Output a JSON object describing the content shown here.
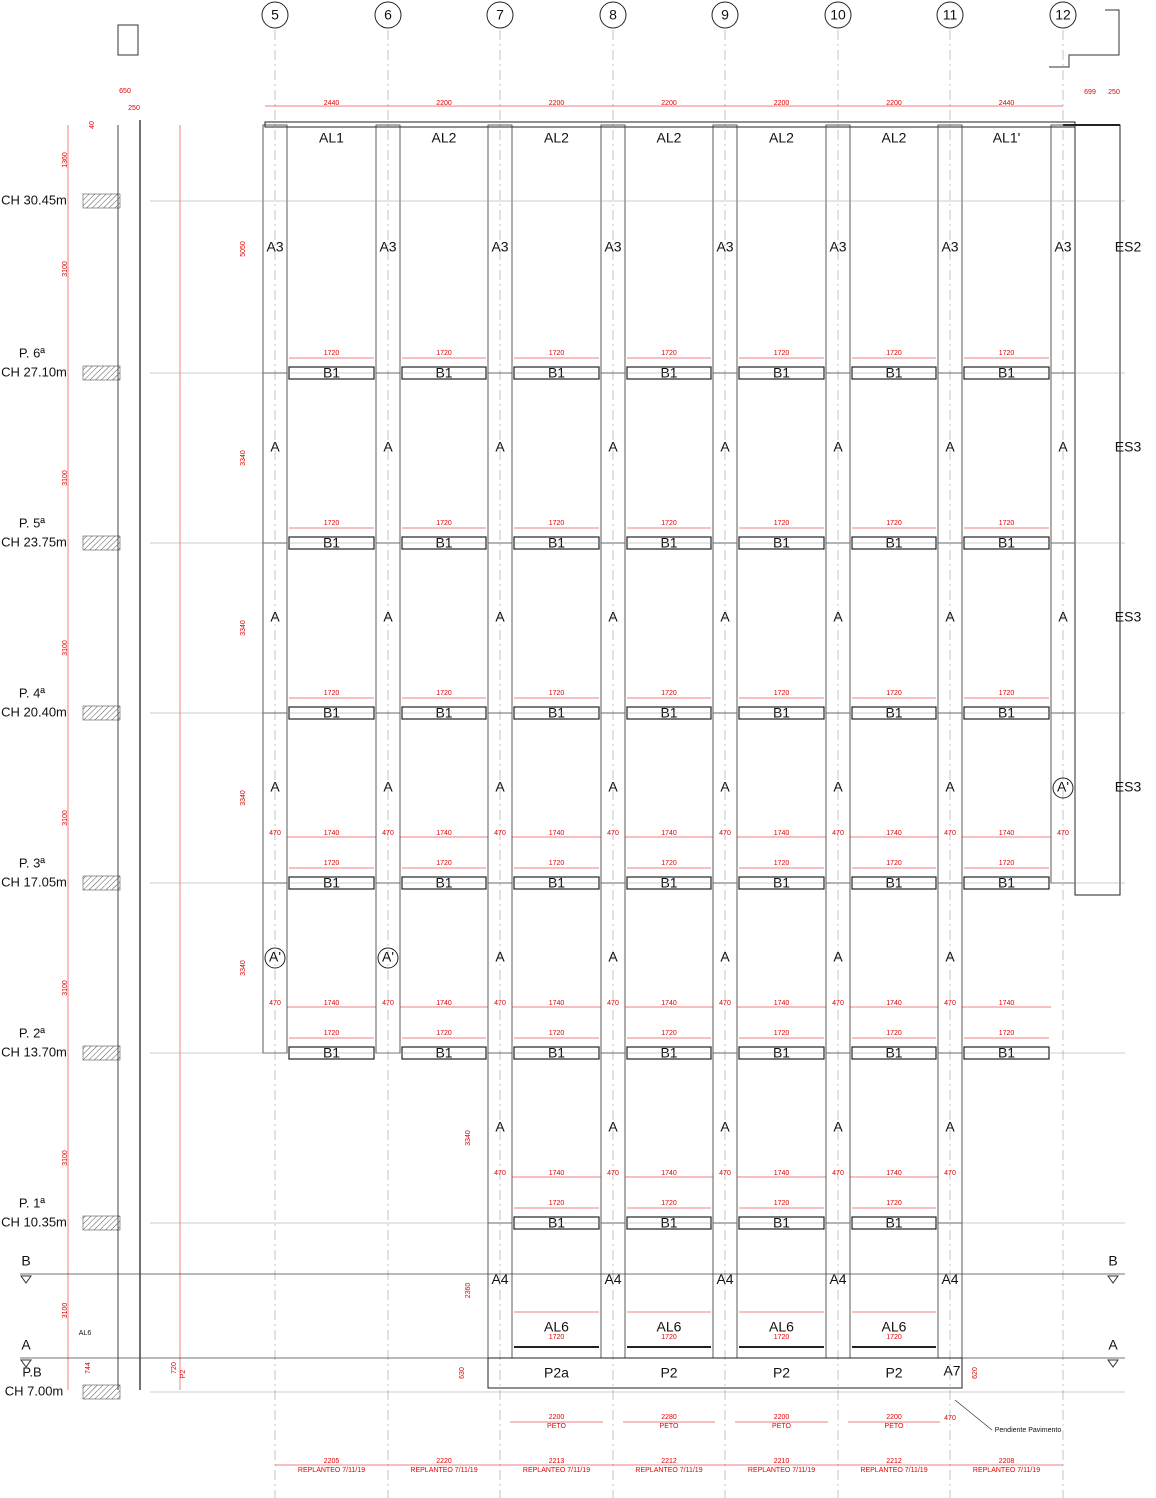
{
  "axes": [
    "5",
    "6",
    "7",
    "8",
    "9",
    "10",
    "11",
    "12"
  ],
  "top_dims": [
    "2440",
    "2200",
    "2200",
    "2200",
    "2200",
    "2200",
    "2440"
  ],
  "top_right_dims": [
    "699",
    "250"
  ],
  "roof_panels": [
    "AL1",
    "AL2",
    "AL2",
    "AL2",
    "AL2",
    "AL2",
    "AL1'"
  ],
  "left_top_dims": [
    "650",
    "250",
    "40",
    "1360"
  ],
  "levels": [
    {
      "elevation": "CH 30.45m"
    },
    {
      "name": "P. 6ª",
      "elevation": "CH 27.10m"
    },
    {
      "name": "P. 5ª",
      "elevation": "CH 23.75m"
    },
    {
      "name": "P. 4ª",
      "elevation": "CH 20.40m"
    },
    {
      "name": "P. 3ª",
      "elevation": "CH 17.05m"
    },
    {
      "name": "P. 2ª",
      "elevation": "CH 13.70m"
    },
    {
      "name": "P. 1ª",
      "elevation": "CH 10.35m"
    },
    {
      "name": "P.B",
      "elevation": "CH 7.00m"
    }
  ],
  "bands": [
    {
      "side": "ES2",
      "height": "5050",
      "story": "3100",
      "columns": [
        "A3",
        "A3",
        "A3",
        "A3",
        "A3",
        "A3",
        "A3",
        "A3"
      ],
      "beams": [
        "B1",
        "B1",
        "B1",
        "B1",
        "B1",
        "B1",
        "B1"
      ],
      "beam_dims": [
        "1720",
        "1720",
        "1720",
        "1720",
        "1720",
        "1720",
        "1720"
      ]
    },
    {
      "side": "ES3",
      "height": "3340",
      "story": "3100",
      "columns": [
        "A",
        "A",
        "A",
        "A",
        "A",
        "A",
        "A",
        "A"
      ],
      "beams": [
        "B1",
        "B1",
        "B1",
        "B1",
        "B1",
        "B1",
        "B1"
      ],
      "beam_dims": [
        "1720",
        "1720",
        "1720",
        "1720",
        "1720",
        "1720",
        "1720"
      ]
    },
    {
      "side": "ES3",
      "height": "3340",
      "story": "3100",
      "columns": [
        "A",
        "A",
        "A",
        "A",
        "A",
        "A",
        "A",
        "A"
      ],
      "beams": [
        "B1",
        "B1",
        "B1",
        "B1",
        "B1",
        "B1",
        "B1"
      ],
      "beam_dims": [
        "1720",
        "1720",
        "1720",
        "1720",
        "1720",
        "1720",
        "1720"
      ]
    },
    {
      "side": "ES3",
      "height": "3340",
      "story": "3100",
      "columns": [
        "A",
        "A",
        "A",
        "A",
        "A",
        "A",
        "A",
        "A'"
      ],
      "col_dims": [
        "470",
        "470",
        "470",
        "470",
        "470",
        "470",
        "470",
        "470"
      ],
      "bay_dims": [
        "1740",
        "1740",
        "1740",
        "1740",
        "1740",
        "1740",
        "1740"
      ],
      "beams": [
        "B1",
        "B1",
        "B1",
        "B1",
        "B1",
        "B1",
        "B1"
      ],
      "beam_dims": [
        "1720",
        "1720",
        "1720",
        "1720",
        "1720",
        "1720",
        "1720"
      ]
    },
    {
      "height": "3340",
      "story": "3100",
      "columns": [
        "A'",
        "A'",
        "A",
        "A",
        "A",
        "A",
        "A",
        null
      ],
      "col_dims": [
        "470",
        "470",
        "470",
        "470",
        "470",
        "470",
        "470",
        null
      ],
      "bay_dims": [
        "1740",
        "1740",
        "1740",
        "1740",
        "1740",
        "1740",
        "1740"
      ],
      "beams": [
        "B1",
        "B1",
        "B1",
        "B1",
        "B1",
        "B1",
        "B1"
      ],
      "beam_dims": [
        "1720",
        "1720",
        "1720",
        "1720",
        "1720",
        "1720",
        "1720"
      ]
    },
    {
      "height": "3340",
      "story": "3100",
      "columns": [
        null,
        null,
        "A",
        "A",
        "A",
        "A",
        "A",
        null
      ],
      "col_dims": [
        null,
        null,
        "470",
        "470",
        "470",
        "470",
        "470",
        null
      ],
      "bay_dims": [
        null,
        null,
        "1740",
        "1740",
        "1740",
        "1740",
        null
      ],
      "beams": [
        null,
        null,
        "B1",
        "B1",
        "B1",
        "B1",
        null
      ],
      "beam_dims": [
        null,
        null,
        "1720",
        "1720",
        "1720",
        "1720",
        null
      ]
    },
    {
      "height": "2360",
      "story": "3100",
      "columns": [
        null,
        null,
        "A4",
        "A4",
        "A4",
        "A4",
        "A4",
        null
      ],
      "beams": [
        null,
        null,
        "AL6",
        "AL6",
        "AL6",
        "AL6",
        null
      ],
      "beam_dims": [
        null,
        null,
        "1720",
        "1720",
        "1720",
        "1720",
        null
      ]
    }
  ],
  "markers": [
    "B",
    "A"
  ],
  "left_notes": [
    "AL6",
    "744",
    "720",
    "P2"
  ],
  "base_panels": [
    null,
    null,
    "P2a",
    "P2",
    "P2",
    "P2",
    null
  ],
  "base_end": "A7",
  "base_dims": [
    "630",
    "620"
  ],
  "peto": [
    {
      "dim": "2200",
      "text": "PETO"
    },
    {
      "dim": "2280",
      "text": "PETO"
    },
    {
      "dim": "2200",
      "text": "PETO"
    },
    {
      "dim": "2200",
      "text": "PETO"
    }
  ],
  "peto_end": "470",
  "note": "Pendiente Pavimento",
  "replanteo": [
    {
      "dim": "2205",
      "text": "REPLANTEO 7/11/19"
    },
    {
      "dim": "2220",
      "text": "REPLANTEO 7/11/19"
    },
    {
      "dim": "2213",
      "text": "REPLANTEO 7/11/19"
    },
    {
      "dim": "2212",
      "text": "REPLANTEO 7/11/19"
    },
    {
      "dim": "2210",
      "text": "REPLANTEO 7/11/19"
    },
    {
      "dim": "2212",
      "text": "REPLANTEO 7/11/19"
    },
    {
      "dim": "2208",
      "text": "REPLANTEO 7/11/19"
    }
  ]
}
